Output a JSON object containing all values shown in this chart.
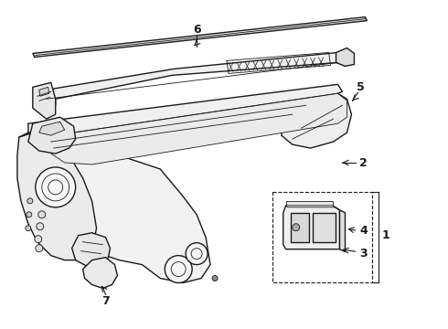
{
  "background_color": "#ffffff",
  "line_color": "#1a1a1a",
  "fig_width": 4.9,
  "fig_height": 3.6,
  "dpi": 100,
  "label_fontsize": 9,
  "lw_main": 1.0,
  "lw_thin": 0.6
}
